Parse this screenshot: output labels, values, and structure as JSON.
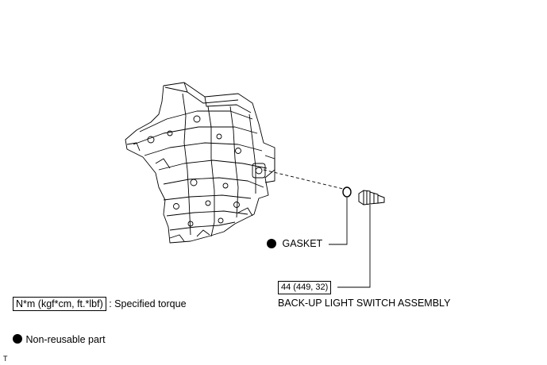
{
  "parts": {
    "gasket": {
      "label": "GASKET"
    },
    "switch": {
      "torque": "44 (449, 32)",
      "label": "BACK-UP LIGHT SWITCH ASSEMBLY"
    }
  },
  "legend": {
    "torque_box": "N*m (kgf*cm, ft.*lbf)",
    "torque_text": ": Specified torque",
    "nonreusable_text": "Non-reusable part"
  },
  "corner_mark": "T"
}
